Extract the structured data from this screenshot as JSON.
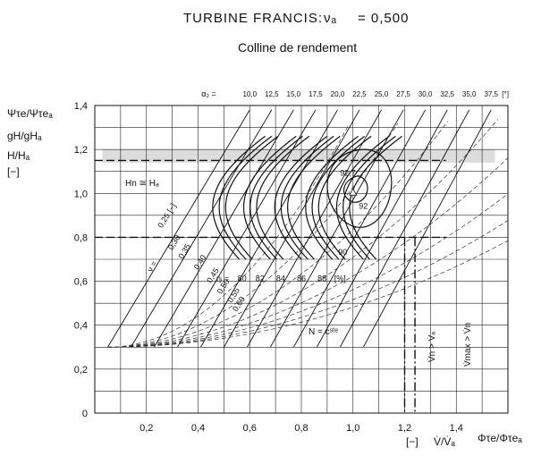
{
  "chart_data": {
    "type": "line",
    "title_text": "TURBINE FRANCIS:",
    "title_nu": "νₐ",
    "title_value": "=  0,500",
    "subtitle": "Colline de rendement",
    "y_labels": [
      "Ψτe/Ψτeₐ",
      "gH/gHₐ",
      "H/Hₐ",
      "[−]"
    ],
    "x_labels": [
      "[−]",
      "V̇/V̇ₐ",
      "Φτe/Φτeₐ"
    ],
    "xlim": [
      0,
      1.6
    ],
    "ylim": [
      0,
      1.4
    ],
    "x_ticks": [
      0.2,
      0.4,
      0.6,
      0.8,
      1.0,
      1.2,
      1.4
    ],
    "x_tick_labels": [
      "0,2",
      "0,4",
      "0,6",
      "0,8",
      "1,0",
      "1,2",
      "1,4"
    ],
    "y_ticks": [
      0,
      0.2,
      0.4,
      0.6,
      0.8,
      1.0,
      1.2,
      1.4
    ],
    "y_tick_labels": [
      "0",
      "0,2",
      "0,4",
      "0,6",
      "0,8",
      "1,0",
      "1,2",
      "1,4"
    ],
    "alpha_prefix": "α₂ =",
    "alpha_unit": "[°]",
    "alpha_values": [
      10.0,
      12.5,
      15.0,
      17.5,
      20.0,
      22.5,
      25.0,
      27.5,
      30.0,
      32.5,
      35.0,
      37.5
    ],
    "alpha_labels": [
      "10,0",
      "12,5",
      "15,0",
      "17,5",
      "20,0",
      "22,5",
      "25,0",
      "27,5",
      "30,0",
      "32,5",
      "35,0",
      "37,5"
    ],
    "nu_prefix": "ν =",
    "nu_values": [
      0.25,
      0.3,
      0.35,
      0.4,
      0.45,
      0.5,
      0.55,
      0.6
    ],
    "nu_labels": [
      "0,25 [−]",
      "0,30",
      "0,35",
      "0,40",
      "0,45",
      "0,50",
      "0,55",
      "0,60"
    ],
    "eta_prefix": "ηᵢ =",
    "eta_unit": "[%]",
    "eta_values": [
      80,
      82,
      84,
      86,
      88,
      90,
      92,
      92.7
    ],
    "eta_labels": [
      "80",
      "82",
      "84",
      "86",
      "88",
      "90",
      "92",
      "92,7"
    ],
    "annotations": {
      "head_equal": "Hn ≅ Hₐ",
      "n_const": "N = cˢᵗᵉ",
      "vdot_n": "V̇n > V̇ₐ",
      "vdot_max": "V̇max > V̇n"
    },
    "reference_lines": {
      "h_dashed": [
        1.15,
        0.8
      ],
      "v_dashdot": [
        1.2,
        1.24
      ]
    },
    "optimum": {
      "x": 1.0,
      "y": 1.0
    },
    "grid": true
  }
}
